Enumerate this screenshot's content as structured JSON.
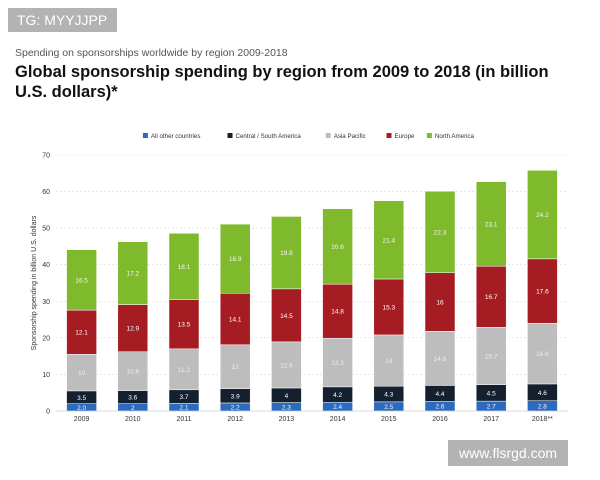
{
  "overlay": {
    "tag": "TG: MYYJJPP",
    "watermark": "www.flsrgd.com"
  },
  "chart_data": {
    "type": "bar",
    "stacked": true,
    "subtitle": "Spending on sponsorships worldwide by region 2009-2018",
    "title": "Global sponsorship spending by region from 2009 to 2018 (in billion U.S. dollars)*",
    "ylabel": "Sponsorship spending in billion U.S. dollars",
    "xlabel": "",
    "ylim": [
      0,
      70
    ],
    "yticks": [
      0,
      10,
      20,
      30,
      40,
      50,
      60,
      70
    ],
    "grid": true,
    "legend_position": "top",
    "categories": [
      "2009",
      "2010",
      "2011",
      "2012",
      "2013",
      "2014",
      "2015",
      "2016",
      "2017",
      "2018**"
    ],
    "series": [
      {
        "name": "All other countries",
        "color": "#2b6bbf",
        "values": [
          2.0,
          2.0,
          2.1,
          2.2,
          2.3,
          2.4,
          2.5,
          2.6,
          2.7,
          2.8
        ],
        "labels": [
          "2.0",
          "2",
          "2.1",
          "2.2",
          "2.3",
          "2.4",
          "2.5",
          "2.6",
          "2.7",
          "2.8"
        ]
      },
      {
        "name": "Central / South America",
        "color": "#14202e",
        "values": [
          3.5,
          3.6,
          3.7,
          3.9,
          4.0,
          4.2,
          4.3,
          4.4,
          4.5,
          4.6
        ],
        "labels": [
          "3.5",
          "3.6",
          "3.7",
          "3.9",
          "4",
          "4.2",
          "4.3",
          "4.4",
          "4.5",
          "4.6"
        ]
      },
      {
        "name": "Asia Pacific",
        "color": "#bdbdbd",
        "values": [
          10.0,
          10.6,
          11.2,
          12.0,
          12.6,
          13.3,
          14.0,
          14.8,
          15.7,
          16.6
        ],
        "labels": [
          "10",
          "10.6",
          "11.2",
          "12",
          "12.6",
          "13.3",
          "14",
          "14.8",
          "15.7",
          "16.6"
        ]
      },
      {
        "name": "Europe",
        "color": "#a61c23",
        "values": [
          12.1,
          12.9,
          13.5,
          14.1,
          14.5,
          14.8,
          15.3,
          16.0,
          16.7,
          17.6
        ],
        "labels": [
          "12.1",
          "12.9",
          "13.5",
          "14.1",
          "14.5",
          "14.8",
          "15.3",
          "16",
          "16.7",
          "17.6"
        ]
      },
      {
        "name": "North America",
        "color": "#7fba2c",
        "values": [
          16.5,
          17.2,
          18.1,
          18.9,
          19.8,
          20.6,
          21.4,
          22.3,
          23.1,
          24.2
        ],
        "labels": [
          "16.5",
          "17.2",
          "18.1",
          "18.9",
          "19.8",
          "20.6",
          "21.4",
          "22.3",
          "23.1",
          "24.2"
        ]
      }
    ]
  }
}
